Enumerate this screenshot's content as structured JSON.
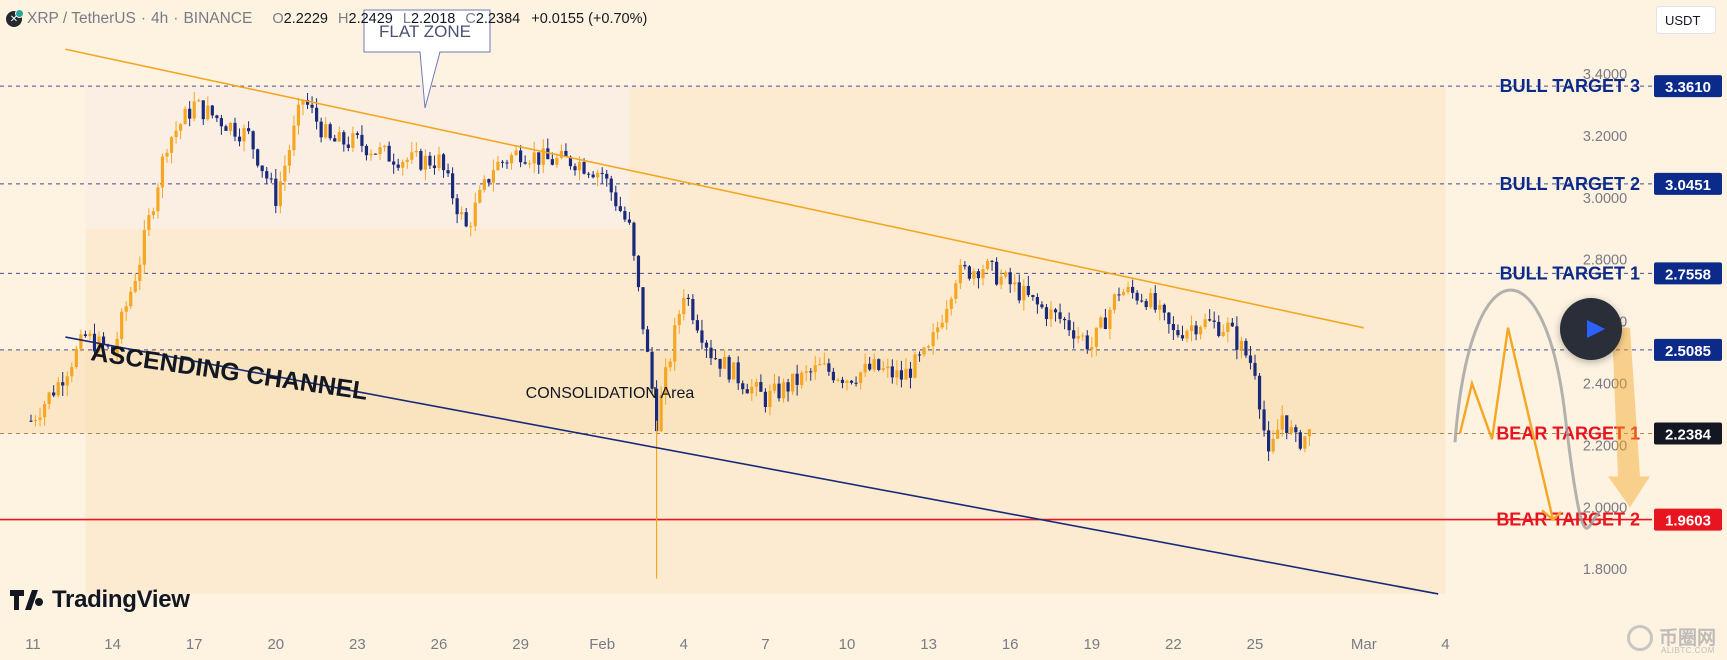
{
  "header": {
    "symbol": "XRP / TetherUS",
    "timeframe": "4h",
    "exchange": "BINANCE",
    "o_label": "O",
    "o_value": "2.2229",
    "h_label": "H",
    "h_value": "2.2429",
    "l_label": "L",
    "l_value": "2.2018",
    "c_label": "C",
    "c_value": "2.2384",
    "change": "+0.0155 (+0.70%)"
  },
  "currency_button": "USDT",
  "logo_text": "TradingView",
  "watermark": {
    "main": "币圈网",
    "sub": "ALIBTC.COM"
  },
  "colors": {
    "background": "#fef3e1",
    "bull_candle": "#f5a623",
    "bear_candle": "#1a2a7a",
    "bull_target": "#0b2a8a",
    "bear_target": "#e8141f",
    "resistance_line": "#f5a623",
    "support_line": "#1a2a7a"
  },
  "chart_data": {
    "type": "candlestick",
    "symbol": "XRP / TetherUS",
    "timeframe": "4h",
    "x_tick_labels": [
      "11",
      "14",
      "17",
      "20",
      "23",
      "26",
      "29",
      "Feb",
      "4",
      "7",
      "10",
      "13",
      "16",
      "19",
      "22",
      "25",
      "Mar",
      "4"
    ],
    "y_tick_labels": [
      "3.4000",
      "3.2000",
      "3.0000",
      "2.8000",
      "2.6000",
      "2.4000",
      "2.2000",
      "2.0000",
      "1.8000"
    ],
    "ylim": [
      1.65,
      3.55
    ],
    "price_path_points": [
      [
        "Jan 11",
        2.28
      ],
      [
        "Jan 12",
        2.4
      ],
      [
        "Jan 13",
        2.55
      ],
      [
        "Jan 14",
        2.5
      ],
      [
        "Jan 15",
        2.8
      ],
      [
        "Jan 16",
        3.18
      ],
      [
        "Jan 17",
        3.3
      ],
      [
        "Jan 18",
        3.25
      ],
      [
        "Jan 19",
        3.2
      ],
      [
        "Jan 20",
        3.0
      ],
      [
        "Jan 21",
        3.32
      ],
      [
        "Jan 22",
        3.18
      ],
      [
        "Jan 23",
        3.18
      ],
      [
        "Jan 24",
        3.14
      ],
      [
        "Jan 25",
        3.12
      ],
      [
        "Jan 26",
        3.12
      ],
      [
        "Jan 27",
        2.9
      ],
      [
        "Jan 28",
        3.1
      ],
      [
        "Jan 29",
        3.15
      ],
      [
        "Jan 30",
        3.12
      ],
      [
        "Jan 31",
        3.12
      ],
      [
        "Feb 1",
        3.08
      ],
      [
        "Feb 2",
        2.9
      ],
      [
        "Feb 3",
        2.28
      ],
      [
        "Feb 4",
        2.7
      ],
      [
        "Feb 5",
        2.5
      ],
      [
        "Feb 6",
        2.42
      ],
      [
        "Feb 7",
        2.35
      ],
      [
        "Feb 8",
        2.4
      ],
      [
        "Feb 9",
        2.45
      ],
      [
        "Feb 10",
        2.42
      ],
      [
        "Feb 11",
        2.45
      ],
      [
        "Feb 12",
        2.42
      ],
      [
        "Feb 13",
        2.5
      ],
      [
        "Feb 14",
        2.75
      ],
      [
        "Feb 15",
        2.78
      ],
      [
        "Feb 16",
        2.72
      ],
      [
        "Feb 17",
        2.65
      ],
      [
        "Feb 18",
        2.6
      ],
      [
        "Feb 19",
        2.52
      ],
      [
        "Feb 20",
        2.7
      ],
      [
        "Feb 21",
        2.68
      ],
      [
        "Feb 22",
        2.56
      ],
      [
        "Feb 23",
        2.6
      ],
      [
        "Feb 24",
        2.58
      ],
      [
        "Feb 25",
        2.45
      ],
      [
        "Feb 25 12:00",
        2.15
      ],
      [
        "Feb 26",
        2.3
      ],
      [
        "Feb 26 12:00",
        2.21
      ],
      [
        "Feb 27",
        2.2384
      ]
    ],
    "current_price": 2.2384,
    "price_labels": [
      {
        "name": "BULL TARGET 3",
        "value": 3.361,
        "label": "3.3610",
        "color": "bull"
      },
      {
        "name": "BULL TARGET 2",
        "value": 3.0451,
        "label": "3.0451",
        "color": "bull"
      },
      {
        "name": "BULL TARGET 1",
        "value": 2.7558,
        "label": "2.7558",
        "color": "bull"
      },
      {
        "name": "",
        "value": 2.5085,
        "label": "2.5085",
        "color": "bull"
      },
      {
        "name": "BEAR TARGET 1",
        "value": 2.2384,
        "label": "2.2384",
        "color": "current"
      },
      {
        "name": "BEAR TARGET 2",
        "value": 1.9603,
        "label": "1.9603",
        "color": "bear"
      }
    ],
    "annotations": {
      "flat_zone": "FLAT ZONE",
      "consolidation": "CONSOLIDATION Area",
      "channel": "ASCENDING CHANNEL"
    },
    "trendlines": {
      "resistance": {
        "from": [
          "Jan 13",
          3.48
        ],
        "to": [
          "Mar 1",
          2.58
        ]
      },
      "support": {
        "from": [
          "Jan 13",
          2.55
        ],
        "to": [
          "Mar 3",
          1.72
        ]
      }
    },
    "projection_paths": {
      "bearish_zigzag": [
        2.2384,
        2.4,
        2.22,
        2.58,
        1.96
      ],
      "curve_to_bull": [
        2.21,
        2.66,
        1.98
      ],
      "shaded_arrow_to": 2.0
    },
    "grid": false,
    "legend": "none"
  }
}
